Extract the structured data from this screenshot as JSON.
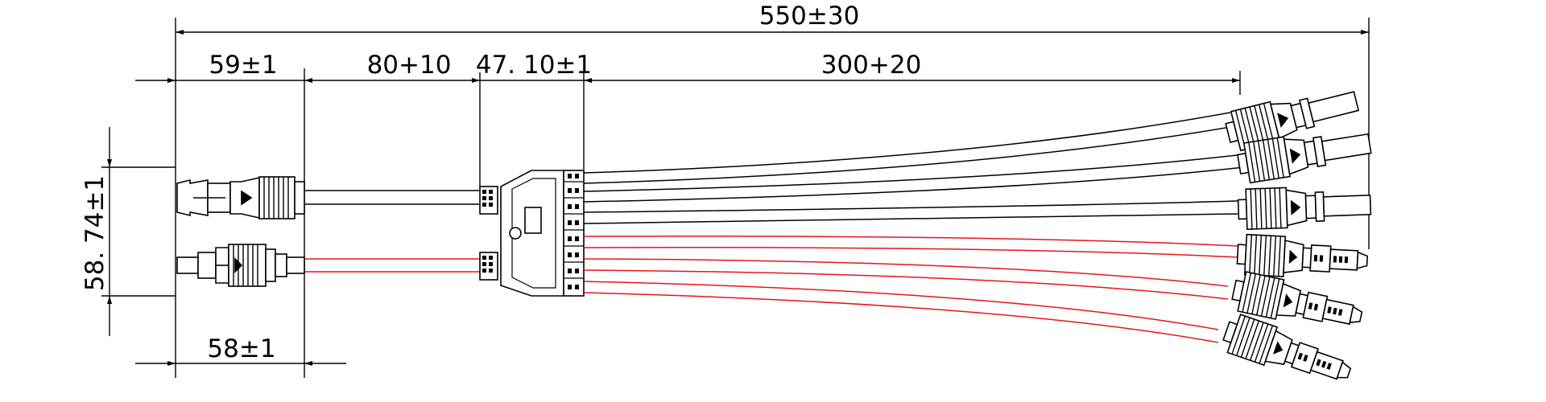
{
  "dimensions": {
    "total_length": "550±30",
    "input_male_length": "59±1",
    "input_cable_length": "80+10",
    "branch_body_length": "47. 10±1",
    "output_cable_length": "300+20",
    "input_female_length": "58±1",
    "input_spacing": "58. 74±1"
  },
  "colors": {
    "line": "#000000",
    "positive_wire": "#e8141b",
    "negative_wire": "#000000"
  }
}
